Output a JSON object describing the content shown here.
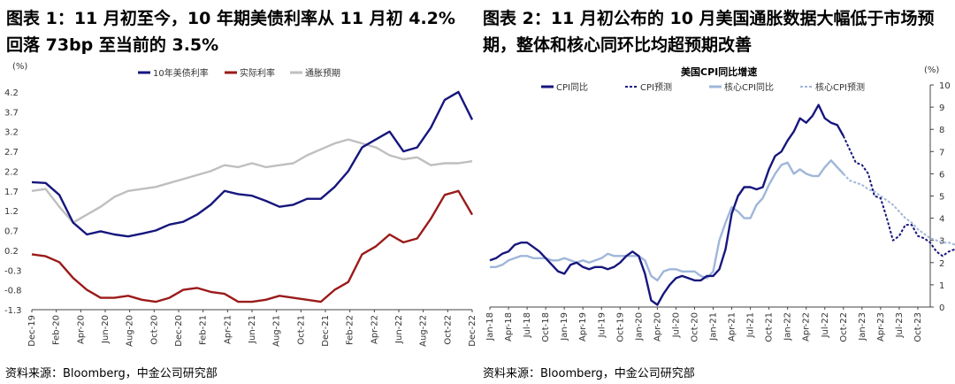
{
  "panels": [
    {
      "title": "图表 1：11 月初至今，10 年期美债利率从 11 月初 4.2% 回落 73bp 至当前的 3.5%",
      "source": "资料来源：Bloomberg，中金公司研究部"
    },
    {
      "title": "图表 2：11 月初公布的 10 月美国通胀数据大幅低于市场预期，整体和核心同环比均超预期改善",
      "source": "资料来源：Bloomberg，中金公司研究部"
    }
  ],
  "colors": {
    "navy": "#16167d",
    "red": "#9b1a1a",
    "gray": "#bfbfbf",
    "light_blue": "#9fb6da"
  },
  "chart_data": [
    {
      "type": "line",
      "title": "",
      "unit_label": "(%)",
      "x_tick_labels": [
        "Dec-19",
        "Feb-20",
        "Apr-20",
        "Jun-20",
        "Aug-20",
        "Oct-20",
        "Dec-20",
        "Feb-21",
        "Apr-21",
        "Jun-21",
        "Aug-21",
        "Oct-21",
        "Dec-21",
        "Feb-22",
        "Apr-22",
        "Jun-22",
        "Aug-22",
        "Oct-22",
        "Dec-22"
      ],
      "y_tick_labels": [
        "4.2",
        "3.7",
        "3.2",
        "2.7",
        "2.2",
        "1.7",
        "1.2",
        "0.7",
        "0.2",
        "-0.3",
        "-0.8",
        "-1.3"
      ],
      "ylim": [
        -1.3,
        4.4
      ],
      "grid": false,
      "legend_position": "top",
      "series": [
        {
          "name": "10年美债利率",
          "color": "#16167d",
          "values": [
            1.92,
            1.9,
            1.6,
            0.9,
            0.6,
            0.68,
            0.6,
            0.55,
            0.62,
            0.7,
            0.85,
            0.92,
            1.1,
            1.35,
            1.7,
            1.62,
            1.58,
            1.45,
            1.3,
            1.35,
            1.5,
            1.5,
            1.8,
            2.2,
            2.8,
            3.0,
            3.2,
            2.7,
            2.8,
            3.3,
            4.0,
            4.2,
            3.5
          ]
        },
        {
          "name": "实际利率",
          "color": "#9b1a1a",
          "values": [
            0.1,
            0.05,
            -0.1,
            -0.5,
            -0.8,
            -1.0,
            -1.0,
            -0.95,
            -1.05,
            -1.1,
            -1.0,
            -0.8,
            -0.75,
            -0.85,
            -0.9,
            -1.1,
            -1.1,
            -1.05,
            -0.95,
            -1.0,
            -1.05,
            -1.1,
            -0.8,
            -0.6,
            0.1,
            0.3,
            0.6,
            0.4,
            0.5,
            1.0,
            1.6,
            1.7,
            1.1
          ]
        },
        {
          "name": "通胀预期",
          "color": "#bfbfbf",
          "values": [
            1.7,
            1.75,
            1.3,
            0.9,
            1.1,
            1.3,
            1.55,
            1.7,
            1.75,
            1.8,
            1.9,
            2.0,
            2.1,
            2.2,
            2.35,
            2.3,
            2.4,
            2.3,
            2.35,
            2.4,
            2.6,
            2.75,
            2.9,
            3.0,
            2.9,
            2.8,
            2.6,
            2.5,
            2.55,
            2.35,
            2.4,
            2.4,
            2.45
          ]
        }
      ]
    },
    {
      "type": "line",
      "title": "美国CPI同比增速",
      "unit_label": "(%)",
      "x_tick_labels": [
        "Jan-18",
        "Apr-18",
        "Jul-18",
        "Oct-18",
        "Jan-19",
        "Apr-19",
        "Jul-19",
        "Oct-19",
        "Jan-20",
        "Apr-20",
        "Jul-20",
        "Oct-20",
        "Jan-21",
        "Apr-21",
        "Jul-21",
        "Oct-21",
        "Jan-22",
        "Apr-22",
        "Jul-22",
        "Oct-22",
        "Jan-23",
        "Apr-23",
        "Jul-23",
        "Oct-23"
      ],
      "y_tick_labels": [
        "10",
        "9",
        "8",
        "7",
        "6",
        "5",
        "4",
        "3",
        "2",
        "1",
        "0"
      ],
      "ylim": [
        0,
        10
      ],
      "grid": false,
      "legend_position": "top",
      "series": [
        {
          "name": "CPI同比",
          "color": "#16167d",
          "values": [
            2.1,
            2.2,
            2.4,
            2.5,
            2.8,
            2.9,
            2.9,
            2.7,
            2.5,
            2.2,
            1.9,
            1.6,
            1.5,
            1.9,
            2.0,
            1.8,
            1.7,
            1.8,
            1.8,
            1.7,
            1.8,
            2.0,
            2.3,
            2.5,
            2.3,
            1.5,
            0.3,
            0.1,
            0.6,
            1.0,
            1.3,
            1.4,
            1.3,
            1.2,
            1.2,
            1.4,
            1.4,
            1.7,
            2.6,
            4.2,
            5.0,
            5.4,
            5.4,
            5.3,
            5.4,
            6.2,
            6.8,
            7.0,
            7.5,
            7.9,
            8.5,
            8.3,
            8.6,
            9.1,
            8.5,
            8.3,
            8.2,
            7.7
          ]
        },
        {
          "name": "CPI预测",
          "color": "#16167d",
          "values": [
            7.7,
            7.1,
            6.5,
            6.4,
            6.0,
            5.0,
            4.9,
            4.0,
            3.0,
            3.2,
            3.7,
            3.7,
            3.2,
            3.1,
            2.9,
            2.5,
            2.3,
            2.5,
            2.6,
            2.7,
            2.6,
            2.7
          ]
        },
        {
          "name": "核心CPI同比",
          "color": "#9fb6da",
          "values": [
            1.8,
            1.8,
            1.9,
            2.1,
            2.2,
            2.3,
            2.3,
            2.2,
            2.2,
            2.2,
            2.1,
            2.1,
            2.2,
            2.1,
            2.0,
            2.1,
            2.0,
            2.1,
            2.2,
            2.4,
            2.3,
            2.3,
            2.3,
            2.3,
            2.3,
            2.1,
            1.4,
            1.2,
            1.6,
            1.7,
            1.7,
            1.6,
            1.6,
            1.6,
            1.4,
            1.3,
            1.6,
            3.0,
            3.8,
            4.5,
            4.3,
            4.0,
            4.0,
            4.6,
            4.9,
            5.5,
            6.0,
            6.4,
            6.5,
            6.0,
            6.2,
            6.0,
            5.9,
            5.9,
            6.3,
            6.6,
            6.3,
            6.0
          ]
        },
        {
          "name": "核心CPI预测",
          "color": "#9fb6da",
          "values": [
            6.0,
            5.7,
            5.6,
            5.5,
            5.3,
            5.2,
            5.0,
            4.8,
            4.6,
            4.3,
            4.0,
            3.8,
            3.5,
            3.3,
            3.1,
            3.0,
            2.9,
            2.9,
            2.8,
            2.8,
            2.8,
            2.7
          ]
        }
      ]
    }
  ]
}
